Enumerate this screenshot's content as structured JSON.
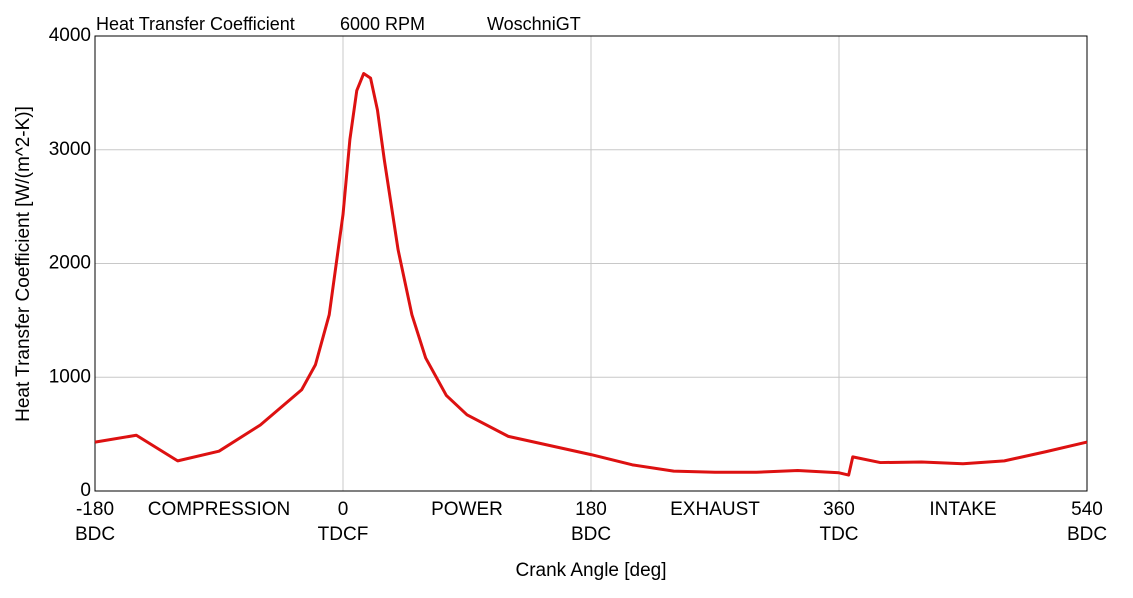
{
  "chart_data": {
    "type": "line",
    "title": "Heat Transfer Coefficient",
    "subtitle": "6000 RPM",
    "model": "WoschniGT",
    "xlabel": "Crank Angle [deg]",
    "ylabel": "Heat Transfer Coefficient [W/(m^2-K)]",
    "xlim": [
      -180,
      540
    ],
    "ylim": [
      0,
      4000
    ],
    "xticks": [
      -180,
      0,
      180,
      360,
      540
    ],
    "xtick_sublabels": [
      "BDC",
      "TDCF",
      "BDC",
      "TDC",
      "BDC"
    ],
    "phases": [
      "COMPRESSION",
      "POWER",
      "EXHAUST",
      "INTAKE"
    ],
    "yticks": [
      0,
      1000,
      2000,
      3000,
      4000
    ],
    "grid": true,
    "x": [
      -180,
      -150,
      -120,
      -90,
      -60,
      -30,
      -20,
      -10,
      0,
      5,
      10,
      15,
      20,
      25,
      30,
      40,
      50,
      60,
      75,
      90,
      120,
      150,
      180,
      210,
      240,
      270,
      300,
      330,
      360,
      367,
      370,
      390,
      420,
      450,
      480,
      510,
      540
    ],
    "series": [
      {
        "name": "Heat Transfer Coefficient",
        "color": "#dd1111",
        "values": [
          430,
          490,
          265,
          350,
          580,
          890,
          1110,
          1550,
          2430,
          3090,
          3520,
          3670,
          3630,
          3350,
          2910,
          2120,
          1550,
          1170,
          840,
          670,
          480,
          400,
          320,
          230,
          175,
          165,
          165,
          180,
          160,
          140,
          300,
          250,
          255,
          240,
          265,
          345,
          430
        ]
      }
    ]
  }
}
